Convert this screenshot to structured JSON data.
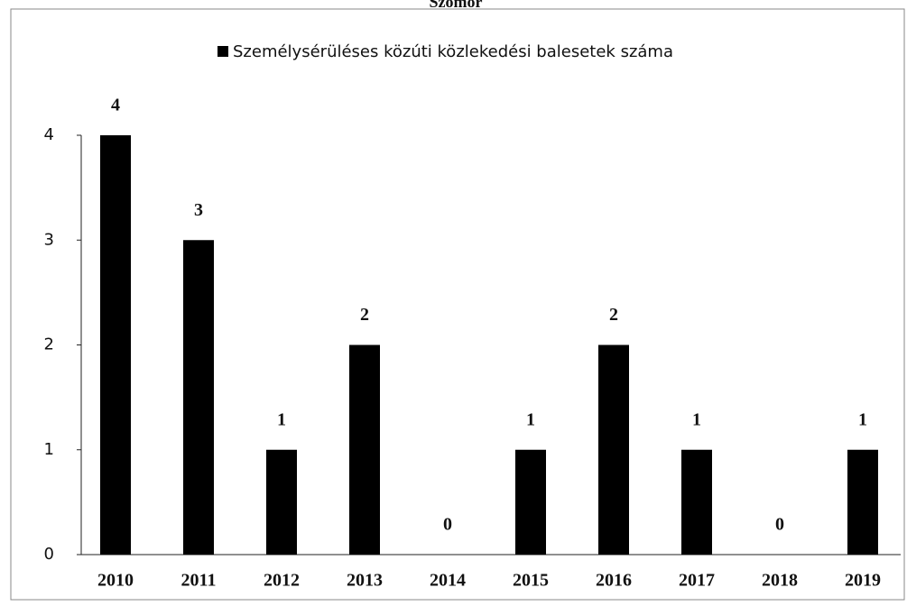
{
  "chart_data": {
    "type": "bar",
    "title": "Szomor",
    "legend": "Személysérüléses közúti közlekedési balesetek száma",
    "categories": [
      "2010",
      "2011",
      "2012",
      "2013",
      "2014",
      "2015",
      "2016",
      "2017",
      "2018",
      "2019"
    ],
    "values": [
      4,
      3,
      1,
      2,
      0,
      1,
      2,
      1,
      0,
      1
    ],
    "color": "#000000",
    "ylim": [
      0,
      4
    ],
    "yticks": [
      0,
      1,
      2,
      3,
      4
    ],
    "grid": false
  }
}
